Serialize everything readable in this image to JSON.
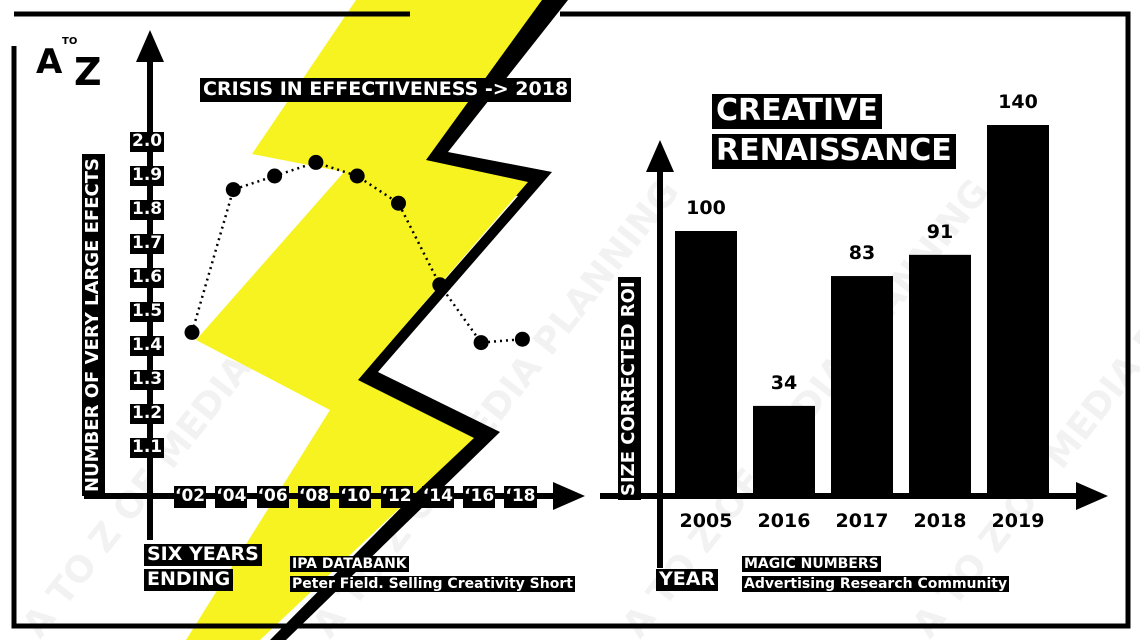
{
  "logo": {
    "letter_a": "A",
    "letter_to": "TO",
    "letter_z": "Z"
  },
  "watermark": "A TO Z OF MEDIA PLANNING",
  "colors": {
    "lightning": "#f7f320",
    "ink": "#000000",
    "background": "#ffffff"
  },
  "left_panel": {
    "title": "CRISIS IN EFFECTIVENESS -> 2018",
    "x_caption_line1": "SIX YEARS",
    "x_caption_line2": "ENDING",
    "source_line1": "IPA DATABANK",
    "source_line2": "Peter Field. Selling Creativity Short"
  },
  "right_panel": {
    "title_line1": "CREATIVE",
    "title_line2": "RENAISSANCE",
    "x_caption": "YEAR",
    "source_line1": "MAGIC NUMBERS",
    "source_line2": "Advertising Research Community"
  },
  "chart_data": [
    {
      "type": "line",
      "title": "CRISIS IN EFFECTIVENESS -> 2018",
      "ylabel": "NUMBER OF VERY LARGE EFECTS",
      "xlabel": "SIX YEARS ENDING",
      "categories": [
        "'02",
        "'04",
        "'06",
        "'08",
        "'10",
        "'12",
        "'14",
        "'16",
        "'18"
      ],
      "category_labels": [
        "‘02",
        "‘04",
        "‘06",
        "‘08",
        "‘10",
        "‘12",
        "‘14",
        "‘16",
        "‘18"
      ],
      "values": [
        1.44,
        1.86,
        1.9,
        1.94,
        1.9,
        1.82,
        1.58,
        1.41,
        1.42
      ],
      "yticks": [
        "1.1",
        "1.2",
        "1.3",
        "1.4",
        "1.5",
        "1.6",
        "1.7",
        "1.8",
        "1.9",
        "2.0"
      ],
      "ylim": [
        1.0,
        2.0
      ],
      "line_style": "dotted",
      "grid": false
    },
    {
      "type": "bar",
      "title": "CREATIVE RENAISSANCE",
      "ylabel": "SIZE CORRECTED ROI",
      "xlabel": "YEAR",
      "categories": [
        "2005",
        "2016",
        "2017",
        "2018",
        "2019"
      ],
      "values": [
        100,
        34,
        83,
        91,
        140
      ],
      "data_labels": [
        "100",
        "34",
        "83",
        "91",
        "140"
      ],
      "ylim": [
        0,
        150
      ],
      "grid": false
    }
  ]
}
